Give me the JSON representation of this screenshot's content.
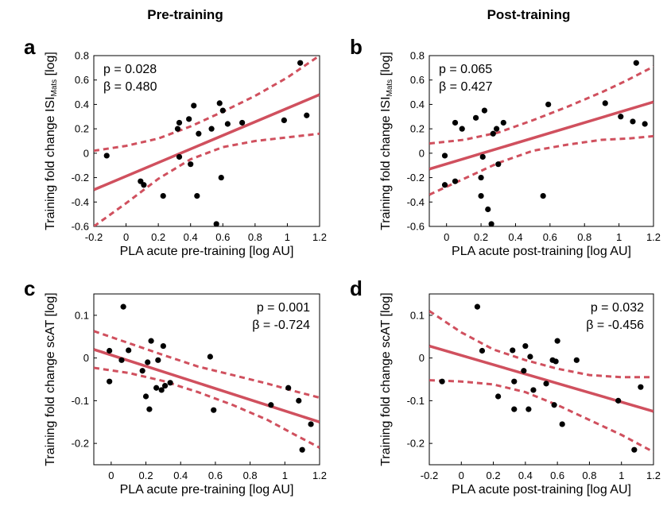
{
  "headers": {
    "left": "Pre-training",
    "right": "Post-training"
  },
  "colors": {
    "fit": "#d0505e",
    "point": "#000000"
  },
  "chart_data": [
    {
      "type": "scatter",
      "panel": "a",
      "xlabel": "PLA acute pre-training [log AU]",
      "ylabel_main": "Training fold change ISI",
      "ylabel_sub": "Mats",
      "ylabel_tail": " [log]",
      "xlim": [
        -0.2,
        1.2
      ],
      "ylim": [
        -0.6,
        0.8
      ],
      "xticks": [
        -0.2,
        0,
        0.2,
        0.4,
        0.6,
        0.8,
        1,
        1.2
      ],
      "xtick_labels": [
        "-0.2",
        "0",
        "0.2",
        "0.4",
        "0.6",
        "0.8",
        "1",
        "1.2"
      ],
      "yticks": [
        -0.6,
        -0.4,
        -0.2,
        0,
        0.2,
        0.4,
        0.6,
        0.8
      ],
      "ytick_labels": [
        "-0.6",
        "-0.4",
        "-0.2",
        "0",
        "0.2",
        "0.4",
        "0.6",
        "0.8"
      ],
      "stats": {
        "p": "p = 0.028",
        "beta": "β = 0.480"
      },
      "stats_pos": "top-left",
      "points": [
        [
          -0.12,
          -0.02
        ],
        [
          0.09,
          -0.23
        ],
        [
          0.11,
          -0.26
        ],
        [
          0.23,
          -0.35
        ],
        [
          0.32,
          0.2
        ],
        [
          0.33,
          0.25
        ],
        [
          0.33,
          -0.03
        ],
        [
          0.39,
          0.28
        ],
        [
          0.4,
          -0.09
        ],
        [
          0.42,
          0.39
        ],
        [
          0.44,
          -0.35
        ],
        [
          0.45,
          0.16
        ],
        [
          0.53,
          0.2
        ],
        [
          0.56,
          -0.58
        ],
        [
          0.58,
          0.41
        ],
        [
          0.59,
          -0.2
        ],
        [
          0.6,
          0.35
        ],
        [
          0.63,
          0.24
        ],
        [
          0.72,
          0.25
        ],
        [
          0.98,
          0.27
        ],
        [
          1.08,
          0.74
        ],
        [
          1.12,
          0.31
        ]
      ],
      "fit": [
        [
          -0.2,
          -0.3
        ],
        [
          1.2,
          0.48
        ]
      ],
      "ci_upper": [
        [
          -0.2,
          0.02
        ],
        [
          0.0,
          0.06
        ],
        [
          0.2,
          0.12
        ],
        [
          0.4,
          0.22
        ],
        [
          0.6,
          0.34
        ],
        [
          0.8,
          0.47
        ],
        [
          1.0,
          0.62
        ],
        [
          1.2,
          0.8
        ]
      ],
      "ci_lower": [
        [
          -0.2,
          -0.6
        ],
        [
          0.0,
          -0.41
        ],
        [
          0.2,
          -0.21
        ],
        [
          0.4,
          -0.05
        ],
        [
          0.6,
          0.05
        ],
        [
          0.8,
          0.1
        ],
        [
          1.0,
          0.13
        ],
        [
          1.2,
          0.16
        ]
      ]
    },
    {
      "type": "scatter",
      "panel": "b",
      "xlabel": "PLA acute post-training [log AU]",
      "ylabel_main": "Training fold change ISI",
      "ylabel_sub": "Mats",
      "ylabel_tail": " [log]",
      "xlim": [
        -0.1,
        1.2
      ],
      "ylim": [
        -0.6,
        0.8
      ],
      "xticks": [
        0,
        0.2,
        0.4,
        0.6,
        0.8,
        1,
        1.2
      ],
      "xtick_labels": [
        "0",
        "0.2",
        "0.4",
        "0.6",
        "0.8",
        "1",
        "1.2"
      ],
      "yticks": [
        -0.6,
        -0.4,
        -0.2,
        0,
        0.2,
        0.4,
        0.6,
        0.8
      ],
      "ytick_labels": [
        "-0.6",
        "-0.4",
        "-0.2",
        "0",
        "0.2",
        "0.4",
        "0.6",
        "0.8"
      ],
      "stats": {
        "p": "p = 0.065",
        "beta": "β = 0.427"
      },
      "stats_pos": "top-left",
      "points": [
        [
          -0.01,
          -0.02
        ],
        [
          -0.01,
          -0.26
        ],
        [
          0.05,
          0.25
        ],
        [
          0.05,
          -0.23
        ],
        [
          0.09,
          0.2
        ],
        [
          0.17,
          0.29
        ],
        [
          0.2,
          -0.2
        ],
        [
          0.2,
          -0.35
        ],
        [
          0.21,
          -0.03
        ],
        [
          0.22,
          0.35
        ],
        [
          0.24,
          -0.46
        ],
        [
          0.26,
          -0.58
        ],
        [
          0.27,
          0.16
        ],
        [
          0.29,
          0.2
        ],
        [
          0.3,
          -0.09
        ],
        [
          0.33,
          0.25
        ],
        [
          0.56,
          -0.35
        ],
        [
          0.59,
          0.4
        ],
        [
          0.92,
          0.41
        ],
        [
          1.01,
          0.3
        ],
        [
          1.08,
          0.26
        ],
        [
          1.1,
          0.74
        ],
        [
          1.15,
          0.24
        ]
      ],
      "fit": [
        [
          -0.1,
          -0.13
        ],
        [
          1.2,
          0.42
        ]
      ],
      "ci_upper": [
        [
          -0.1,
          0.08
        ],
        [
          0.1,
          0.11
        ],
        [
          0.3,
          0.17
        ],
        [
          0.5,
          0.27
        ],
        [
          0.7,
          0.38
        ],
        [
          0.9,
          0.5
        ],
        [
          1.05,
          0.6
        ],
        [
          1.2,
          0.71
        ]
      ],
      "ci_lower": [
        [
          -0.1,
          -0.34
        ],
        [
          0.1,
          -0.21
        ],
        [
          0.3,
          -0.08
        ],
        [
          0.5,
          0.02
        ],
        [
          0.7,
          0.07
        ],
        [
          0.9,
          0.11
        ],
        [
          1.05,
          0.12
        ],
        [
          1.2,
          0.14
        ]
      ]
    },
    {
      "type": "scatter",
      "panel": "c",
      "xlabel": "PLA acute pre-training [log AU]",
      "ylabel_main": "Training fold change scAT [log]",
      "ylabel_sub": "",
      "ylabel_tail": "",
      "xlim": [
        -0.1,
        1.2
      ],
      "ylim": [
        -0.25,
        0.15
      ],
      "xticks": [
        0,
        0.2,
        0.4,
        0.6,
        0.8,
        1,
        1.2
      ],
      "xtick_labels": [
        "0",
        "0.2",
        "0.4",
        "0.6",
        "0.8",
        "1",
        "1.2"
      ],
      "yticks": [
        -0.2,
        -0.1,
        0,
        0.1
      ],
      "ytick_labels": [
        "-0.2",
        "-0.1",
        "0",
        "0.1"
      ],
      "stats": {
        "p": "p = 0.001",
        "beta": "β = -0.724"
      },
      "stats_pos": "top-right",
      "points": [
        [
          -0.01,
          0.017
        ],
        [
          -0.01,
          -0.055
        ],
        [
          0.06,
          -0.005
        ],
        [
          0.07,
          0.12
        ],
        [
          0.1,
          0.018
        ],
        [
          0.18,
          -0.03
        ],
        [
          0.2,
          -0.09
        ],
        [
          0.21,
          -0.01
        ],
        [
          0.22,
          -0.12
        ],
        [
          0.23,
          0.04
        ],
        [
          0.26,
          -0.07
        ],
        [
          0.27,
          -0.005
        ],
        [
          0.29,
          -0.075
        ],
        [
          0.3,
          0.028
        ],
        [
          0.31,
          -0.065
        ],
        [
          0.34,
          -0.058
        ],
        [
          0.57,
          0.003
        ],
        [
          0.59,
          -0.122
        ],
        [
          0.92,
          -0.11
        ],
        [
          1.02,
          -0.07
        ],
        [
          1.08,
          -0.1
        ],
        [
          1.1,
          -0.215
        ],
        [
          1.15,
          -0.155
        ]
      ],
      "fit": [
        [
          -0.1,
          0.02
        ],
        [
          1.2,
          -0.15
        ]
      ],
      "ci_upper": [
        [
          -0.1,
          0.063
        ],
        [
          0.1,
          0.035
        ],
        [
          0.3,
          0.007
        ],
        [
          0.5,
          -0.02
        ],
        [
          0.7,
          -0.04
        ],
        [
          0.9,
          -0.06
        ],
        [
          1.05,
          -0.077
        ],
        [
          1.2,
          -0.093
        ]
      ],
      "ci_lower": [
        [
          -0.1,
          -0.023
        ],
        [
          0.1,
          -0.035
        ],
        [
          0.3,
          -0.054
        ],
        [
          0.5,
          -0.08
        ],
        [
          0.7,
          -0.11
        ],
        [
          0.9,
          -0.145
        ],
        [
          1.05,
          -0.178
        ],
        [
          1.2,
          -0.21
        ]
      ]
    },
    {
      "type": "scatter",
      "panel": "d",
      "xlabel": "PLA acute post-training [log AU]",
      "ylabel_main": "Training fold change scAT [log]",
      "ylabel_sub": "",
      "ylabel_tail": "",
      "xlim": [
        -0.2,
        1.2
      ],
      "ylim": [
        -0.25,
        0.15
      ],
      "xticks": [
        -0.2,
        0,
        0.2,
        0.4,
        0.6,
        0.8,
        1,
        1.2
      ],
      "xtick_labels": [
        "-0.2",
        "0",
        "0.2",
        "0.4",
        "0.6",
        "0.8",
        "1",
        "1.2"
      ],
      "yticks": [
        -0.2,
        -0.1,
        0,
        0.1
      ],
      "ytick_labels": [
        "-0.2",
        "-0.1",
        "0",
        "0.1"
      ],
      "stats": {
        "p": "p = 0.032",
        "beta": "β = -0.456"
      },
      "stats_pos": "top-right",
      "points": [
        [
          -0.12,
          -0.055
        ],
        [
          0.1,
          0.12
        ],
        [
          0.13,
          0.017
        ],
        [
          0.23,
          -0.09
        ],
        [
          0.32,
          0.018
        ],
        [
          0.33,
          -0.055
        ],
        [
          0.33,
          -0.12
        ],
        [
          0.39,
          -0.03
        ],
        [
          0.4,
          0.028
        ],
        [
          0.42,
          -0.12
        ],
        [
          0.43,
          0.003
        ],
        [
          0.45,
          -0.075
        ],
        [
          0.53,
          -0.06
        ],
        [
          0.57,
          -0.005
        ],
        [
          0.58,
          -0.11
        ],
        [
          0.59,
          -0.008
        ],
        [
          0.6,
          0.04
        ],
        [
          0.63,
          -0.155
        ],
        [
          0.72,
          -0.005
        ],
        [
          0.98,
          -0.1
        ],
        [
          1.08,
          -0.215
        ],
        [
          1.12,
          -0.068
        ]
      ],
      "fit": [
        [
          -0.2,
          0.028
        ],
        [
          1.2,
          -0.125
        ]
      ],
      "ci_upper": [
        [
          -0.2,
          0.11
        ],
        [
          0.0,
          0.06
        ],
        [
          0.2,
          0.02
        ],
        [
          0.4,
          -0.005
        ],
        [
          0.6,
          -0.025
        ],
        [
          0.8,
          -0.04
        ],
        [
          1.0,
          -0.045
        ],
        [
          1.2,
          -0.045
        ]
      ],
      "ci_lower": [
        [
          -0.2,
          -0.052
        ],
        [
          0.0,
          -0.055
        ],
        [
          0.2,
          -0.062
        ],
        [
          0.4,
          -0.08
        ],
        [
          0.6,
          -0.11
        ],
        [
          0.8,
          -0.145
        ],
        [
          1.0,
          -0.18
        ],
        [
          1.2,
          -0.22
        ]
      ]
    }
  ]
}
